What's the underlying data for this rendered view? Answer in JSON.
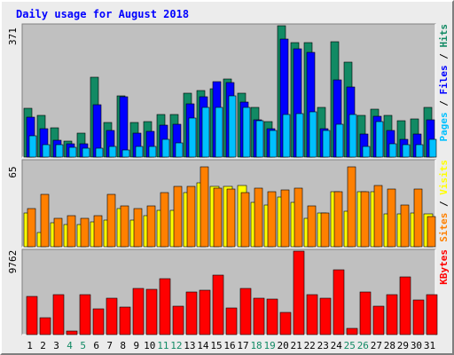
{
  "title": "Daily usage for August 2018",
  "colors": {
    "title": "#0000ff",
    "panel_bg": "#c0c0c0",
    "hits": "#128a64",
    "files": "#0000ff",
    "pages": "#00c0ff",
    "visits": "#ffff00",
    "sites": "#ff8000",
    "kbytes": "#ff0000",
    "weekend_label": "#128a64",
    "weekday_label": "#000000"
  },
  "chart_data": [
    {
      "type": "bar",
      "name": "top",
      "max_label": "371",
      "ymax": 371,
      "legend": [
        "Pages",
        "Files",
        "Hits"
      ],
      "categories": [
        "1",
        "2",
        "3",
        "4",
        "5",
        "6",
        "7",
        "8",
        "9",
        "10",
        "11",
        "12",
        "13",
        "14",
        "15",
        "16",
        "17",
        "18",
        "19",
        "20",
        "21",
        "22",
        "23",
        "24",
        "25",
        "26",
        "27",
        "28",
        "29",
        "30",
        "31"
      ],
      "weekend_days": [
        4,
        5,
        11,
        12,
        18,
        19,
        25,
        26
      ],
      "series": [
        {
          "name": "Hits",
          "values": [
            137,
            117,
            82,
            44,
            68,
            225,
            97,
            174,
            97,
            100,
            121,
            120,
            180,
            187,
            192,
            220,
            181,
            140,
            100,
            371,
            323,
            323,
            140,
            325,
            267,
            117,
            135,
            117,
            103,
            107,
            140
          ]
        },
        {
          "name": "Files",
          "values": [
            114,
            80,
            47,
            37,
            37,
            149,
            75,
            170,
            68,
            72,
            90,
            92,
            150,
            170,
            214,
            210,
            155,
            106,
            80,
            333,
            305,
            297,
            80,
            218,
            199,
            65,
            115,
            75,
            50,
            65,
            105
          ]
        },
        {
          "name": "Pages",
          "values": [
            60,
            35,
            35,
            28,
            25,
            25,
            30,
            20,
            30,
            30,
            50,
            40,
            110,
            140,
            140,
            174,
            140,
            102,
            75,
            120,
            124,
            127,
            75,
            92,
            120,
            30,
            100,
            37,
            35,
            35,
            50
          ]
        }
      ]
    },
    {
      "type": "bar",
      "name": "middle",
      "max_label": "65",
      "ymax": 65,
      "legend": [
        "Sites",
        "Visits"
      ],
      "categories": [
        "1",
        "2",
        "3",
        "4",
        "5",
        "6",
        "7",
        "8",
        "9",
        "10",
        "11",
        "12",
        "13",
        "14",
        "15",
        "16",
        "17",
        "18",
        "19",
        "20",
        "21",
        "22",
        "23",
        "24",
        "25",
        "26",
        "27",
        "28",
        "29",
        "30",
        "31"
      ],
      "series": [
        {
          "name": "Visits",
          "values": [
            26,
            11,
            18,
            17,
            17,
            19,
            20,
            29,
            20,
            24,
            28,
            28,
            41,
            49,
            46,
            46,
            47,
            34,
            32,
            38,
            34,
            22,
            26,
            42,
            27,
            42,
            42,
            25,
            25,
            26,
            25
          ]
        },
        {
          "name": "Sites",
          "values": [
            29,
            40,
            22,
            24,
            22,
            24,
            40,
            31,
            29,
            31,
            41,
            46,
            46,
            61,
            45,
            44,
            41,
            45,
            42,
            43,
            45,
            31,
            26,
            42,
            61,
            42,
            47,
            44,
            32,
            44,
            23
          ]
        }
      ]
    },
    {
      "type": "bar",
      "name": "bottom",
      "max_label": "9762",
      "ymax": 9762,
      "legend": [
        "KBytes"
      ],
      "categories": [
        "1",
        "2",
        "3",
        "4",
        "5",
        "6",
        "7",
        "8",
        "9",
        "10",
        "11",
        "12",
        "13",
        "14",
        "15",
        "16",
        "17",
        "18",
        "19",
        "20",
        "21",
        "22",
        "23",
        "24",
        "25",
        "26",
        "27",
        "28",
        "29",
        "30",
        "31"
      ],
      "series": [
        {
          "name": "KBytes",
          "values": [
            4516,
            1938,
            4645,
            387,
            4645,
            2969,
            4258,
            3227,
            5420,
            5291,
            6581,
            3356,
            5033,
            5162,
            6968,
            3098,
            5420,
            4258,
            4129,
            2581,
            9762,
            4645,
            4258,
            7614,
            774,
            5033,
            3356,
            4645,
            6710,
            4000,
            4645
          ]
        }
      ]
    }
  ]
}
